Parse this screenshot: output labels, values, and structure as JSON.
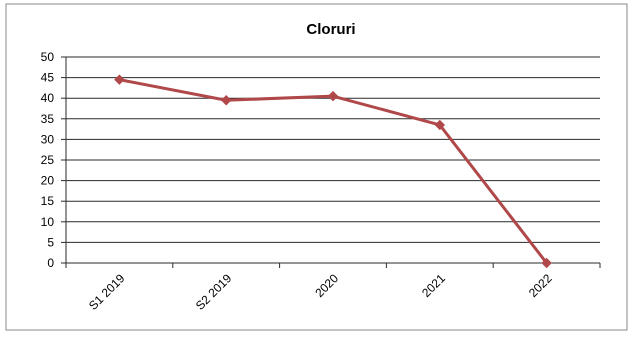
{
  "chart_data": {
    "type": "line",
    "title": "Cloruri",
    "xlabel": "",
    "ylabel": "",
    "categories": [
      "S1 2019",
      "S2 2019",
      "2020",
      "2021",
      "2022"
    ],
    "series": [
      {
        "values": [
          44.5,
          39.5,
          40.5,
          33.5,
          0
        ]
      }
    ],
    "ylim": [
      0,
      50
    ],
    "yticks": [
      0,
      5,
      10,
      15,
      20,
      25,
      30,
      35,
      40,
      45,
      50
    ],
    "grid": true,
    "legend": "none",
    "colors": {
      "line": "#b0484a",
      "marker": "#b0484a",
      "grid": "#2a2a2a",
      "text": "#000000",
      "frame": "#8a8a8a"
    }
  }
}
